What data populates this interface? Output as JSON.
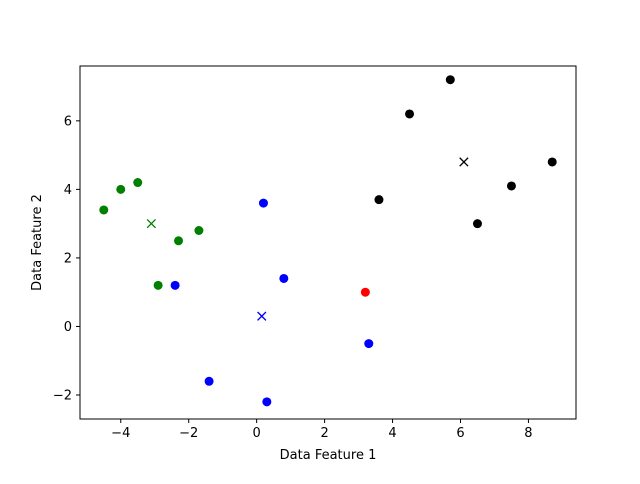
{
  "chart_data": {
    "type": "scatter",
    "xlabel": "Data Feature 1",
    "ylabel": "Data Feature 2",
    "xlim": [
      -5.2,
      9.4
    ],
    "ylim": [
      -2.7,
      7.6
    ],
    "xticks": [
      -4,
      -2,
      0,
      2,
      4,
      6,
      8
    ],
    "yticks": [
      -2,
      0,
      2,
      4,
      6
    ],
    "grid": false,
    "series": [
      {
        "marker": "circle",
        "color": "#008000",
        "points": [
          [
            -4.5,
            3.4
          ],
          [
            -4.0,
            4.0
          ],
          [
            -3.5,
            4.2
          ],
          [
            -2.9,
            1.2
          ],
          [
            -2.3,
            2.5
          ],
          [
            -1.7,
            2.8
          ]
        ]
      },
      {
        "marker": "circle",
        "color": "#0000ff",
        "points": [
          [
            -2.4,
            1.2
          ],
          [
            -1.4,
            -1.6
          ],
          [
            0.2,
            3.6
          ],
          [
            0.3,
            -2.2
          ],
          [
            0.8,
            1.4
          ],
          [
            3.3,
            -0.5
          ]
        ]
      },
      {
        "marker": "circle",
        "color": "#000000",
        "points": [
          [
            3.6,
            3.7
          ],
          [
            4.5,
            6.2
          ],
          [
            5.7,
            7.2
          ],
          [
            6.5,
            3.0
          ],
          [
            7.5,
            4.1
          ],
          [
            8.7,
            4.8
          ]
        ]
      },
      {
        "marker": "circle",
        "color": "#ff0000",
        "points": [
          [
            3.2,
            1.0
          ]
        ]
      },
      {
        "marker": "x",
        "color": "#008000",
        "points": [
          [
            -3.1,
            3.0
          ]
        ]
      },
      {
        "marker": "x",
        "color": "#0000ff",
        "points": [
          [
            0.15,
            0.3
          ]
        ]
      },
      {
        "marker": "x",
        "color": "#000000",
        "points": [
          [
            6.1,
            4.8
          ]
        ]
      }
    ]
  }
}
